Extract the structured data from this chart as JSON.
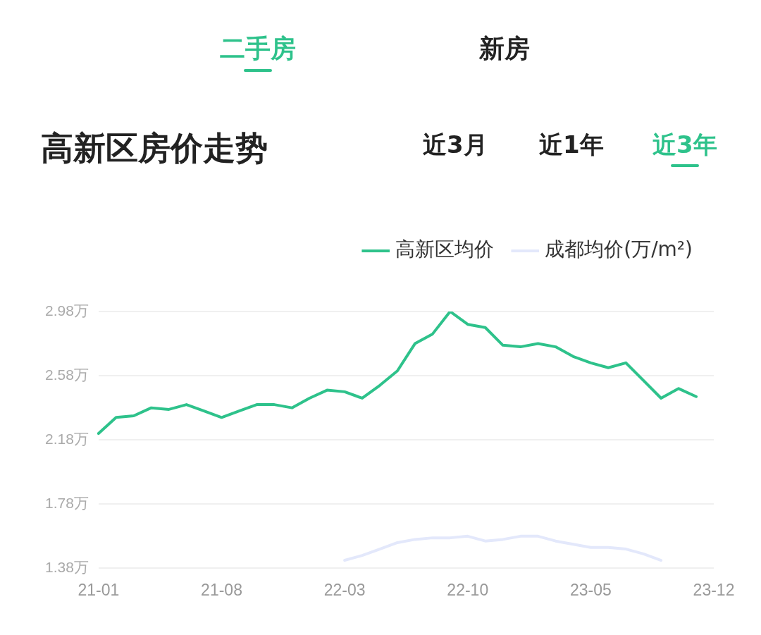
{
  "chart_data": {
    "type": "line",
    "title": "高新区房价走势",
    "annotations": [
      "二手房",
      "新房",
      "近3月",
      "近1年",
      "近3年"
    ],
    "categories": [
      "21-01",
      null,
      null,
      null,
      null,
      null,
      null,
      "21-08",
      null,
      null,
      null,
      null,
      null,
      null,
      "22-03",
      null,
      null,
      null,
      null,
      null,
      null,
      "22-10",
      null,
      null,
      null,
      null,
      null,
      null,
      "23-05",
      null,
      null,
      null,
      null,
      null,
      null,
      "23-12"
    ],
    "series": [
      {
        "name": "高新区均价",
        "color": "#2ec28b",
        "values": [
          2.22,
          2.32,
          2.33,
          2.38,
          2.37,
          2.4,
          2.36,
          2.32,
          2.36,
          2.4,
          2.4,
          2.38,
          2.44,
          2.49,
          2.48,
          2.44,
          2.52,
          2.61,
          2.78,
          2.84,
          2.98,
          2.9,
          2.88,
          2.77,
          2.76,
          2.78,
          2.76,
          2.7,
          2.66,
          2.63,
          2.66,
          2.55,
          2.44,
          2.5,
          2.45,
          null
        ]
      },
      {
        "name": "成都均价(万/m²)",
        "color": "#e3e8fb",
        "values": [
          null,
          null,
          null,
          null,
          null,
          null,
          null,
          null,
          null,
          null,
          null,
          null,
          null,
          null,
          1.43,
          1.46,
          1.5,
          1.54,
          1.56,
          1.57,
          1.57,
          1.58,
          1.55,
          1.56,
          1.58,
          1.58,
          1.55,
          1.53,
          1.51,
          1.51,
          1.5,
          1.47,
          1.43,
          null,
          null,
          null
        ]
      }
    ],
    "ylim": [
      1.38,
      2.98
    ],
    "yticks": [
      {
        "value": 1.38,
        "label": "1.38万"
      },
      {
        "value": 1.78,
        "label": "1.78万"
      },
      {
        "value": 2.18,
        "label": "2.18万"
      },
      {
        "value": 2.58,
        "label": "2.58万"
      },
      {
        "value": 2.98,
        "label": "2.98万"
      }
    ],
    "grid": "y",
    "legend": "top right",
    "line_style": "solid"
  }
}
